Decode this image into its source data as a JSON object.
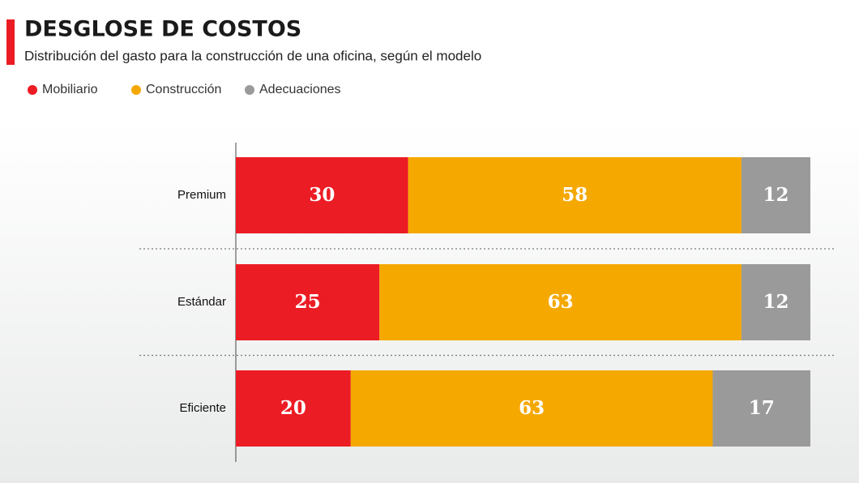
{
  "chart_data": {
    "type": "stacked-bar-horizontal",
    "title": "DESGLOSE DE COSTOS",
    "subtitle": "Distribución del gasto para la construcción de una oficina, según el modelo",
    "categories": [
      "Premium",
      "Estándar",
      "Eficiente"
    ],
    "series": [
      {
        "name": "Mobiliario",
        "color": "#ec1c24",
        "values": [
          30,
          25,
          20
        ]
      },
      {
        "name": "Construcción",
        "color": "#f5a800",
        "values": [
          58,
          63,
          63
        ]
      },
      {
        "name": "Adecuaciones",
        "color": "#9a9a9a",
        "values": [
          12,
          12,
          17
        ]
      }
    ],
    "xlim": [
      0,
      100
    ],
    "legend": "top-left"
  }
}
